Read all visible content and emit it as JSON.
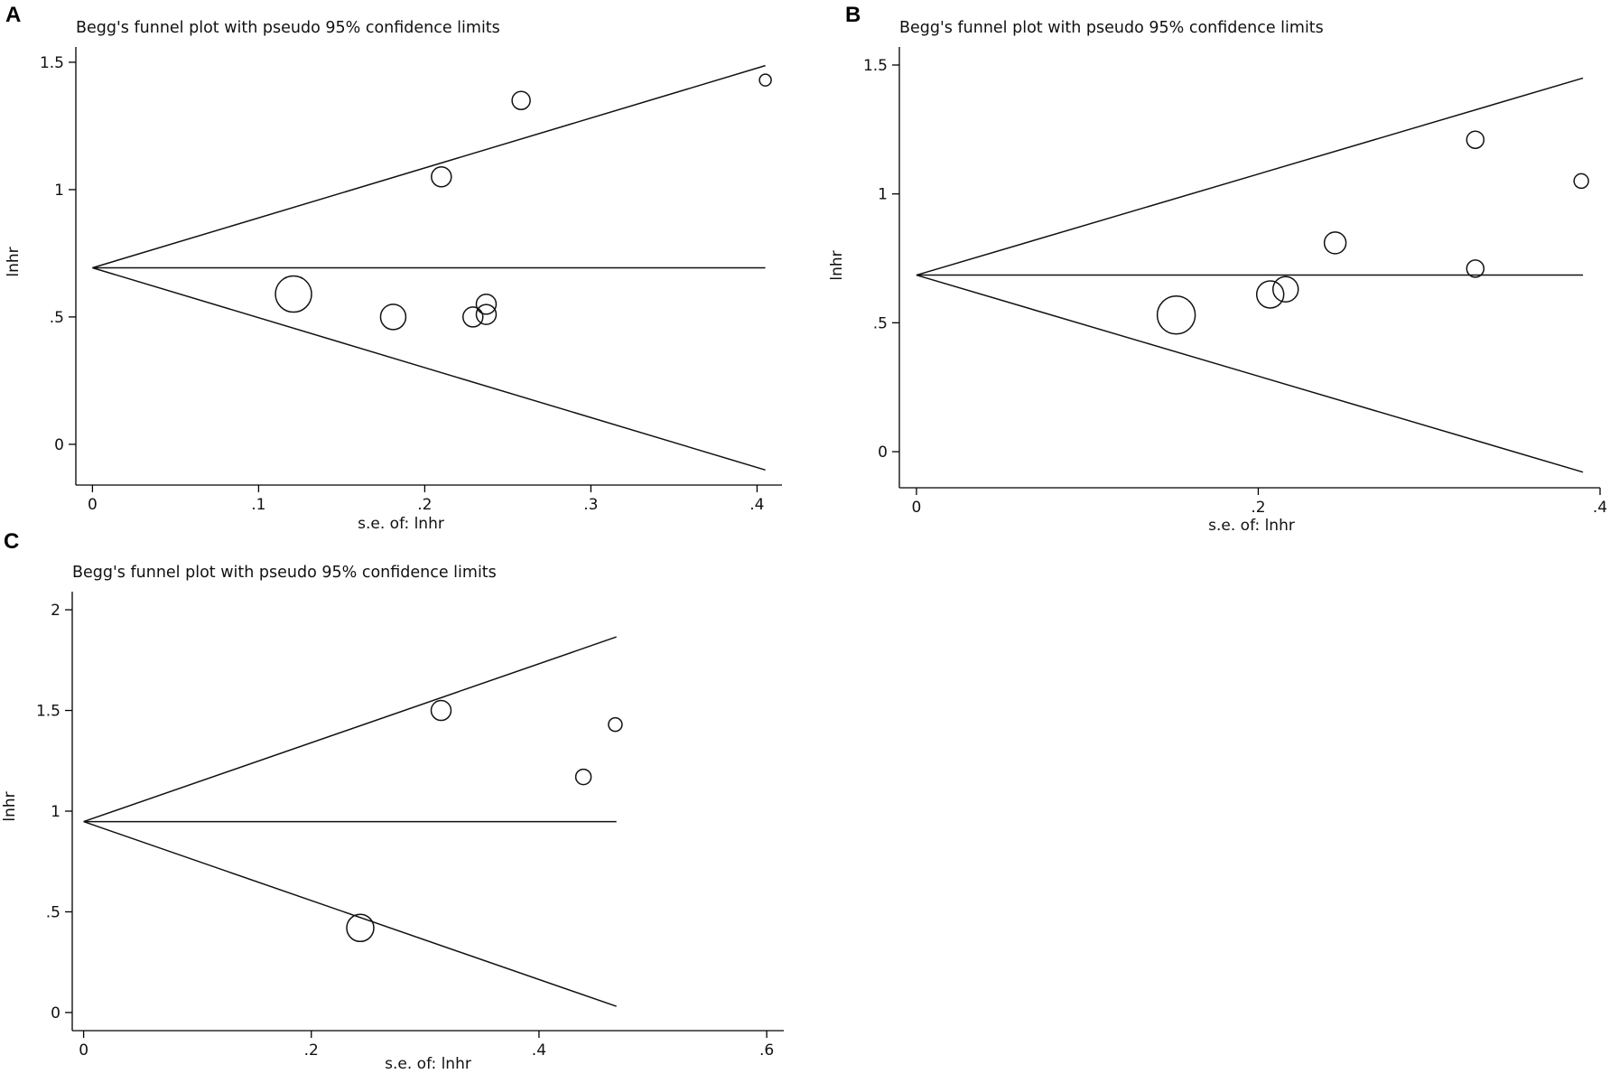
{
  "chart_data": [
    {
      "type": "scatter",
      "panel_label": "A",
      "title": "Begg's funnel plot with pseudo 95% confidence limits",
      "xlabel": "s.e. of: lnhr",
      "ylabel": "lnhr",
      "xlim": [
        -0.01,
        0.415
      ],
      "ylim": [
        -0.16,
        1.56
      ],
      "xticks": [
        0,
        0.1,
        0.2,
        0.3,
        0.4
      ],
      "xtick_labels": [
        "0",
        ".1",
        ".2",
        ".3",
        ".4"
      ],
      "yticks": [
        0,
        0.5,
        1,
        1.5
      ],
      "ytick_labels": [
        "0",
        ".5",
        "1",
        "1.5"
      ],
      "pooled_estimate": 0.693,
      "funnel_max_se": 0.405,
      "points": [
        {
          "se": 0.121,
          "lnhr": 0.59,
          "size": 20
        },
        {
          "se": 0.181,
          "lnhr": 0.5,
          "size": 14
        },
        {
          "se": 0.21,
          "lnhr": 1.05,
          "size": 11
        },
        {
          "se": 0.229,
          "lnhr": 0.5,
          "size": 11
        },
        {
          "se": 0.237,
          "lnhr": 0.55,
          "size": 11
        },
        {
          "se": 0.237,
          "lnhr": 0.51,
          "size": 11
        },
        {
          "se": 0.258,
          "lnhr": 1.35,
          "size": 10
        },
        {
          "se": 0.405,
          "lnhr": 1.43,
          "size": 6.5
        }
      ]
    },
    {
      "type": "scatter",
      "panel_label": "B",
      "title": "Begg's funnel plot with pseudo 95% confidence limits",
      "xlabel": "s.e. of: lnhr",
      "ylabel": "lnhr",
      "xlim": [
        -0.01,
        0.4
      ],
      "ylim": [
        -0.14,
        1.57
      ],
      "xticks": [
        0,
        0.2,
        0.4
      ],
      "xtick_labels": [
        "0",
        ".2",
        ".4"
      ],
      "yticks": [
        0,
        0.5,
        1,
        1.5
      ],
      "ytick_labels": [
        "0",
        ".5",
        "1",
        "1.5"
      ],
      "pooled_estimate": 0.685,
      "funnel_max_se": 0.39,
      "points": [
        {
          "se": 0.152,
          "lnhr": 0.53,
          "size": 21
        },
        {
          "se": 0.207,
          "lnhr": 0.61,
          "size": 15
        },
        {
          "se": 0.216,
          "lnhr": 0.63,
          "size": 14
        },
        {
          "se": 0.245,
          "lnhr": 0.81,
          "size": 12
        },
        {
          "se": 0.327,
          "lnhr": 1.21,
          "size": 9.5
        },
        {
          "se": 0.327,
          "lnhr": 0.71,
          "size": 9.5
        },
        {
          "se": 0.389,
          "lnhr": 1.05,
          "size": 8
        }
      ]
    },
    {
      "type": "scatter",
      "panel_label": "C",
      "title": "Begg's funnel plot with pseudo 95% confidence limits",
      "xlabel": "s.e. of: lnhr",
      "ylabel": "lnhr",
      "xlim": [
        -0.01,
        0.615
      ],
      "ylim": [
        -0.09,
        2.09
      ],
      "xticks": [
        0,
        0.2,
        0.4,
        0.6
      ],
      "xtick_labels": [
        "0",
        ".2",
        ".4",
        ".6"
      ],
      "yticks": [
        0,
        0.5,
        1,
        1.5,
        2
      ],
      "ytick_labels": [
        "0",
        ".5",
        "1",
        "1.5",
        "2"
      ],
      "pooled_estimate": 0.948,
      "funnel_max_se": 0.468,
      "points": [
        {
          "se": 0.243,
          "lnhr": 0.42,
          "size": 15
        },
        {
          "se": 0.314,
          "lnhr": 1.5,
          "size": 11
        },
        {
          "se": 0.439,
          "lnhr": 1.17,
          "size": 8.5
        },
        {
          "se": 0.467,
          "lnhr": 1.43,
          "size": 7.5
        }
      ]
    }
  ]
}
